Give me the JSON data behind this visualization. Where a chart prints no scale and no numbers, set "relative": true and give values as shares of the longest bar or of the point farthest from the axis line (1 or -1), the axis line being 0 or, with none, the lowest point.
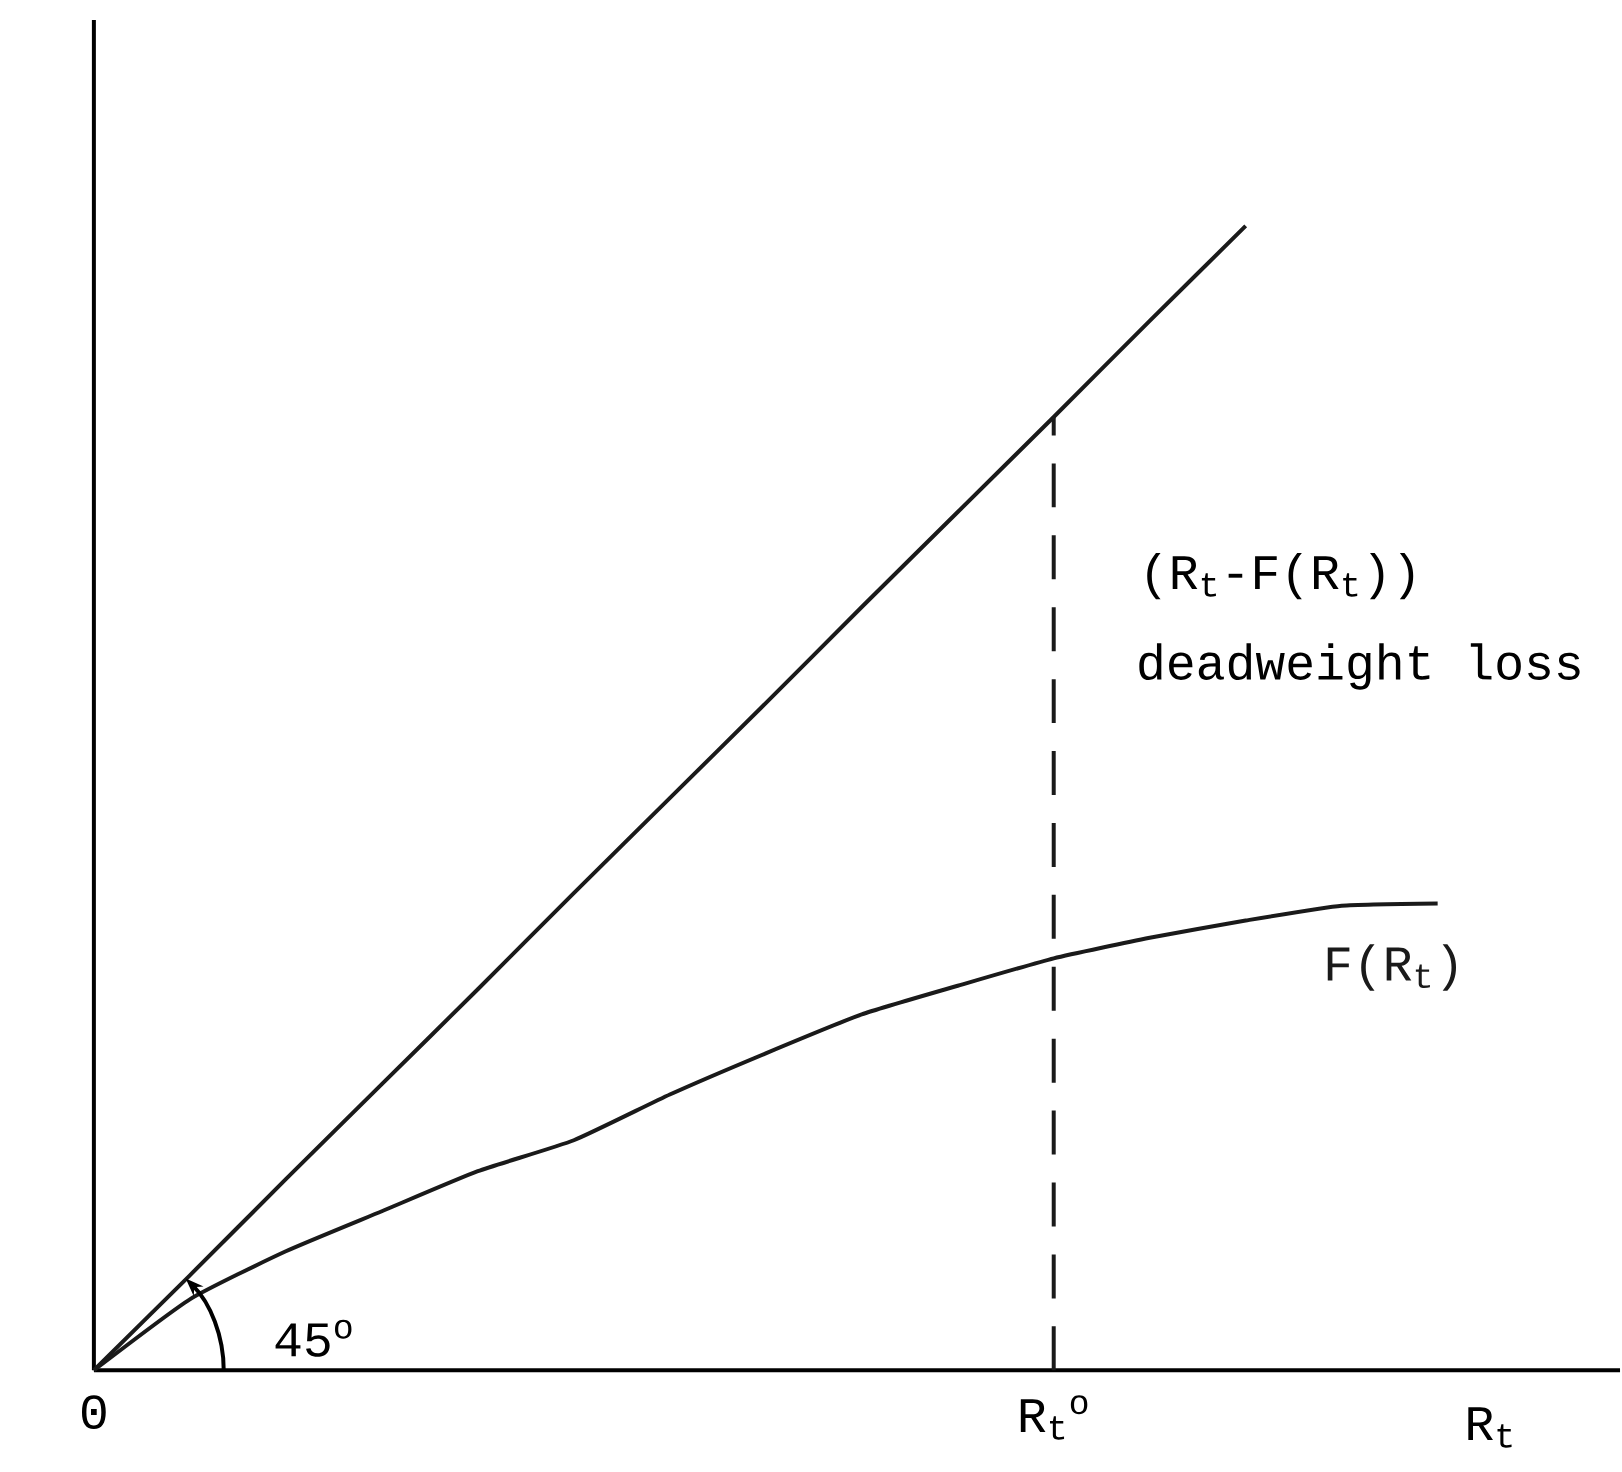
{
  "chart_data": {
    "type": "line",
    "relative": true,
    "xlabel": "R$_{t}$",
    "categories": [
      "0",
      null,
      null,
      null,
      null,
      null,
      null,
      null,
      null,
      null,
      "R$_{t}$$^{o}$",
      null,
      null,
      null,
      null,
      null
    ],
    "tick_labels": "x",
    "series": [
      {
        "color": "#1a1a1a",
        "values": [
          0,
          0.083,
          0.167,
          0.25,
          0.333,
          0.417,
          0.5,
          0.583,
          0.667,
          0.75,
          0.833,
          0.917,
          1,
          null,
          null,
          null
        ]
      },
      {
        "name": "F(R$_{t}$)",
        "color": "#1a1a1a",
        "values": [
          0,
          0.062,
          0.104,
          0.139,
          0.174,
          0.201,
          0.241,
          0.277,
          0.311,
          0.336,
          0.36,
          0.378,
          0.393,
          0.406,
          0.408,
          null
        ]
      }
    ],
    "ref_lines": [
      {
        "axis": "x",
        "value": "R$_{t}$$^{o}$",
        "color": "#1a1a1a",
        "line_style": "dashed"
      }
    ],
    "annotations": [
      "45$^{o}$",
      "(R$_{t}$-F(R$_{t}$))",
      "deadweight loss"
    ]
  }
}
